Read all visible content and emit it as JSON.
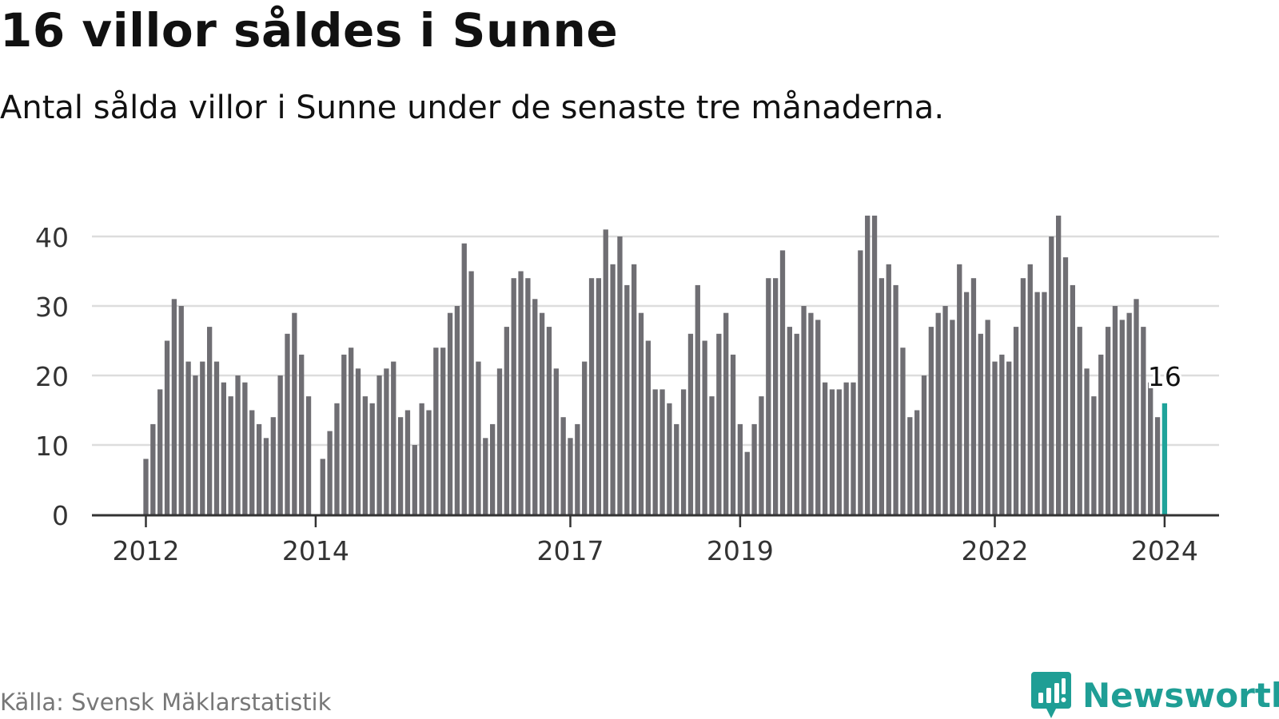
{
  "title": "16 villor såldes i Sunne",
  "subtitle": "Antal sålda villor i Sunne under de senaste tre månaderna.",
  "source": "Källa: Svensk Mäklarstatistik",
  "logo": {
    "text": "Newsworthy",
    "icon": "newsworthy-logo-icon"
  },
  "colors": {
    "bar": "#6f6e73",
    "highlight": "#1fa39a",
    "grid": "#dddddd",
    "axis": "#333333",
    "text": "#333333",
    "brand": "#1f9e95"
  },
  "chart_data": {
    "type": "bar",
    "title": "16 villor såldes i Sunne",
    "xlabel": "",
    "ylabel": "",
    "ylim": [
      0,
      43
    ],
    "yticks": [
      0,
      10,
      20,
      30,
      40
    ],
    "grid": true,
    "x_start": "2012-01",
    "xticks": [
      {
        "label": "2012",
        "index": 0
      },
      {
        "label": "2014",
        "index": 24
      },
      {
        "label": "2017",
        "index": 60
      },
      {
        "label": "2019",
        "index": 84
      },
      {
        "label": "2022",
        "index": 120
      },
      {
        "label": "2024",
        "index": 144
      }
    ],
    "values": [
      8,
      13,
      18,
      25,
      31,
      30,
      22,
      20,
      22,
      27,
      22,
      19,
      17,
      20,
      19,
      15,
      13,
      11,
      14,
      20,
      26,
      29,
      23,
      17,
      null,
      8,
      12,
      16,
      23,
      24,
      21,
      17,
      16,
      20,
      21,
      22,
      14,
      15,
      10,
      16,
      15,
      24,
      24,
      29,
      30,
      39,
      35,
      22,
      11,
      13,
      21,
      27,
      34,
      35,
      34,
      31,
      29,
      27,
      21,
      14,
      11,
      13,
      22,
      34,
      34,
      41,
      36,
      40,
      33,
      36,
      29,
      25,
      18,
      18,
      16,
      13,
      18,
      26,
      33,
      25,
      17,
      26,
      29,
      23,
      13,
      9,
      13,
      17,
      34,
      34,
      38,
      27,
      26,
      30,
      29,
      28,
      19,
      18,
      18,
      19,
      19,
      38,
      43,
      43,
      34,
      36,
      33,
      24,
      14,
      15,
      20,
      27,
      29,
      30,
      28,
      36,
      32,
      34,
      26,
      28,
      22,
      23,
      22,
      27,
      34,
      36,
      32,
      32,
      40,
      43,
      37,
      33,
      27,
      21,
      17,
      23,
      27,
      30,
      28,
      29,
      31,
      27,
      19,
      14,
      16
    ],
    "highlight": {
      "index": 144,
      "value": 16,
      "label": "16"
    }
  }
}
